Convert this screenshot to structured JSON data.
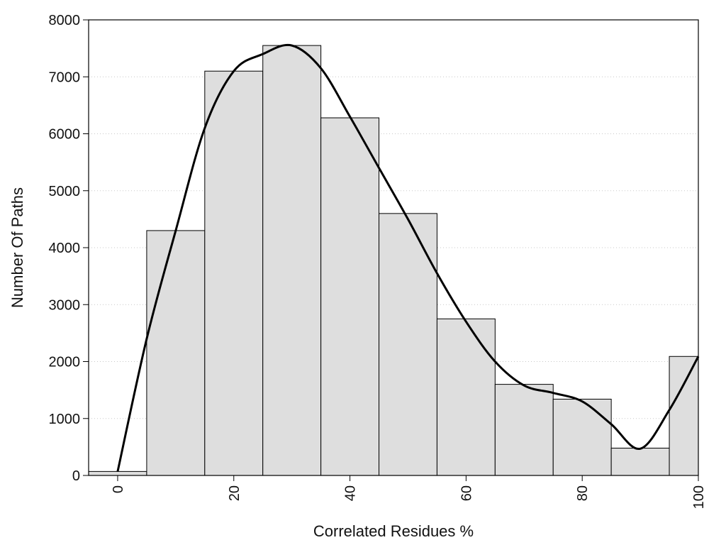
{
  "chart_data": {
    "type": "bar",
    "xlabel": "Correlated Residues %",
    "ylabel": "Number Of Paths",
    "xlim": [
      -5,
      100
    ],
    "ylim": [
      0,
      8000
    ],
    "bin_width": 10,
    "x_ticks": [
      0,
      20,
      40,
      60,
      80,
      100
    ],
    "y_ticks": [
      0,
      1000,
      2000,
      3000,
      4000,
      5000,
      6000,
      7000,
      8000
    ],
    "grid": "horizontal dotted",
    "bar_color": "#dedede",
    "bar_edge_color": "#000000",
    "curve_color": "#000000",
    "bins": [
      0,
      10,
      20,
      30,
      40,
      50,
      60,
      70,
      80,
      90,
      100
    ],
    "values": [
      70,
      4300,
      7100,
      7550,
      6280,
      4600,
      2750,
      1600,
      1340,
      480,
      2090
    ],
    "density_curve": [
      [
        0,
        70
      ],
      [
        5,
        2400
      ],
      [
        10,
        4300
      ],
      [
        15,
        6100
      ],
      [
        20,
        7100
      ],
      [
        25,
        7400
      ],
      [
        30,
        7550
      ],
      [
        35,
        7150
      ],
      [
        40,
        6300
      ],
      [
        45,
        5400
      ],
      [
        50,
        4500
      ],
      [
        55,
        3550
      ],
      [
        60,
        2700
      ],
      [
        65,
        2000
      ],
      [
        70,
        1580
      ],
      [
        75,
        1450
      ],
      [
        80,
        1300
      ],
      [
        85,
        900
      ],
      [
        90,
        470
      ],
      [
        95,
        1150
      ],
      [
        100,
        2090
      ]
    ]
  }
}
